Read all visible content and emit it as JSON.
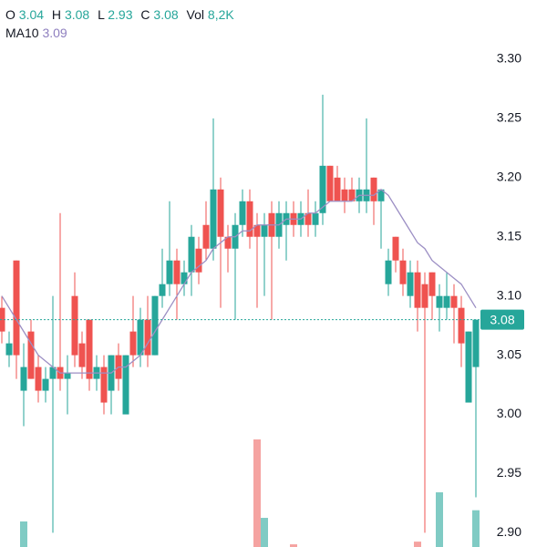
{
  "chart_data": {
    "type": "candlestick",
    "labels": {
      "open": "O",
      "high": "H",
      "low": "L",
      "close": "C",
      "volume": "Vol"
    },
    "open": [
      3.09,
      3.05,
      3.13,
      3.02,
      3.07,
      3.04,
      3.02,
      3.03,
      3.04,
      3.03,
      3.1,
      3.06,
      3.08,
      3.03,
      3.04,
      3.02,
      3.05,
      3.0,
      3.07,
      3.05,
      3.08,
      3.05,
      3.1,
      3.11,
      3.13,
      3.11,
      3.12,
      3.14,
      3.16,
      3.14,
      3.19,
      3.15,
      3.14,
      3.16,
      3.18,
      3.16,
      3.15,
      3.17,
      3.15,
      3.16,
      3.17,
      3.16,
      3.17,
      3.16,
      3.17,
      3.21,
      3.2,
      3.19,
      3.19,
      3.18,
      3.18,
      3.2,
      3.18,
      3.11,
      3.15,
      3.13,
      3.1,
      3.12,
      3.11,
      3.12,
      3.09,
      3.09,
      3.1,
      3.09,
      3.01,
      3.04
    ],
    "high": [
      3.1,
      3.07,
      3.13,
      3.06,
      3.08,
      3.05,
      3.04,
      3.1,
      3.17,
      3.05,
      3.12,
      3.07,
      3.08,
      3.05,
      3.05,
      3.05,
      3.06,
      3.05,
      3.1,
      3.09,
      3.1,
      3.1,
      3.14,
      3.18,
      3.14,
      3.13,
      3.16,
      3.15,
      3.18,
      3.25,
      3.2,
      3.16,
      3.17,
      3.19,
      3.19,
      3.17,
      3.17,
      3.18,
      3.18,
      3.18,
      3.18,
      3.18,
      3.19,
      3.18,
      3.27,
      3.21,
      3.21,
      3.2,
      3.2,
      3.2,
      3.25,
      3.2,
      3.19,
      3.14,
      3.15,
      3.14,
      3.13,
      3.13,
      3.12,
      3.12,
      3.11,
      3.12,
      3.11,
      3.1,
      3.07,
      3.08
    ],
    "low": [
      3.06,
      3.04,
      3.03,
      2.99,
      3.03,
      3.01,
      3.01,
      2.9,
      3.02,
      3.0,
      3.04,
      3.03,
      3.02,
      3.02,
      3.0,
      3.0,
      3.02,
      3.0,
      3.04,
      3.04,
      3.04,
      3.05,
      3.09,
      3.1,
      3.08,
      3.1,
      3.1,
      3.11,
      3.13,
      3.13,
      3.09,
      3.12,
      3.08,
      3.15,
      3.14,
      3.09,
      3.1,
      3.08,
      3.14,
      3.13,
      3.15,
      3.15,
      3.15,
      3.15,
      3.16,
      3.18,
      3.18,
      3.17,
      3.18,
      3.17,
      3.17,
      3.16,
      3.14,
      3.1,
      3.12,
      3.1,
      3.09,
      3.07,
      2.9,
      3.08,
      3.07,
      3.08,
      3.06,
      3.04,
      3.01,
      2.93
    ],
    "close": [
      3.07,
      3.06,
      3.05,
      3.04,
      3.03,
      3.02,
      3.03,
      3.04,
      3.03,
      3.035,
      3.05,
      3.04,
      3.03,
      3.04,
      3.01,
      3.05,
      3.03,
      3.05,
      3.05,
      3.08,
      3.05,
      3.1,
      3.11,
      3.13,
      3.11,
      3.12,
      3.15,
      3.12,
      3.14,
      3.19,
      3.15,
      3.14,
      3.16,
      3.18,
      3.15,
      3.15,
      3.16,
      3.15,
      3.17,
      3.17,
      3.16,
      3.17,
      3.16,
      3.17,
      3.21,
      3.18,
      3.18,
      3.18,
      3.18,
      3.19,
      3.19,
      3.18,
      3.19,
      3.13,
      3.13,
      3.11,
      3.12,
      3.09,
      3.09,
      3.1,
      3.1,
      3.1,
      3.09,
      3.06,
      3.07,
      3.08
    ],
    "volume": [
      0,
      0,
      0,
      5700,
      0,
      0,
      0,
      0,
      0,
      0,
      0,
      0,
      0,
      0,
      0,
      0,
      0,
      0,
      0,
      0,
      0,
      0,
      0,
      0,
      0,
      0,
      0,
      0,
      0,
      0,
      0,
      0,
      0,
      0,
      0,
      24000,
      6500,
      0,
      0,
      0,
      600,
      0,
      0,
      0,
      0,
      0,
      0,
      0,
      0,
      0,
      0,
      0,
      0,
      0,
      0,
      0,
      0,
      1200,
      0,
      0,
      12200,
      0,
      0,
      0,
      0,
      8200
    ],
    "volume_value_labels": {
      "65": "8,2K"
    },
    "moving_average": {
      "name": "MA10",
      "color": "#9c8fc4",
      "values": [
        3.1,
        3.09,
        3.08,
        3.07,
        3.06,
        3.05,
        3.045,
        3.04,
        3.035,
        3.035,
        3.035,
        3.035,
        3.035,
        3.035,
        3.035,
        3.035,
        3.04,
        3.04,
        3.045,
        3.05,
        3.06,
        3.07,
        3.08,
        3.09,
        3.1,
        3.11,
        3.12,
        3.125,
        3.13,
        3.14,
        3.145,
        3.15,
        3.15,
        3.155,
        3.155,
        3.16,
        3.16,
        3.16,
        3.16,
        3.165,
        3.165,
        3.165,
        3.17,
        3.17,
        3.175,
        3.18,
        3.18,
        3.18,
        3.18,
        3.185,
        3.185,
        3.185,
        3.19,
        3.185,
        3.175,
        3.165,
        3.155,
        3.145,
        3.14,
        3.13,
        3.125,
        3.12,
        3.115,
        3.11,
        3.1,
        3.09
      ]
    },
    "up_color": "#26a69a",
    "down_color": "#ef5350",
    "up_volume_color": "#80cbc4",
    "down_volume_color": "#f5a3a1",
    "ylim": [
      2.888,
      3.35
    ],
    "yticks": [
      {
        "value": 2.9,
        "label": "2.90"
      },
      2.95,
      {
        "value": 3.0,
        "label": "3.00"
      },
      3.05,
      {
        "value": 3.1,
        "label": "3.10"
      },
      3.15,
      {
        "value": 3.2,
        "label": "3.20"
      },
      3.25,
      {
        "value": 3.3,
        "label": "3.30"
      }
    ],
    "grid": false
  }
}
